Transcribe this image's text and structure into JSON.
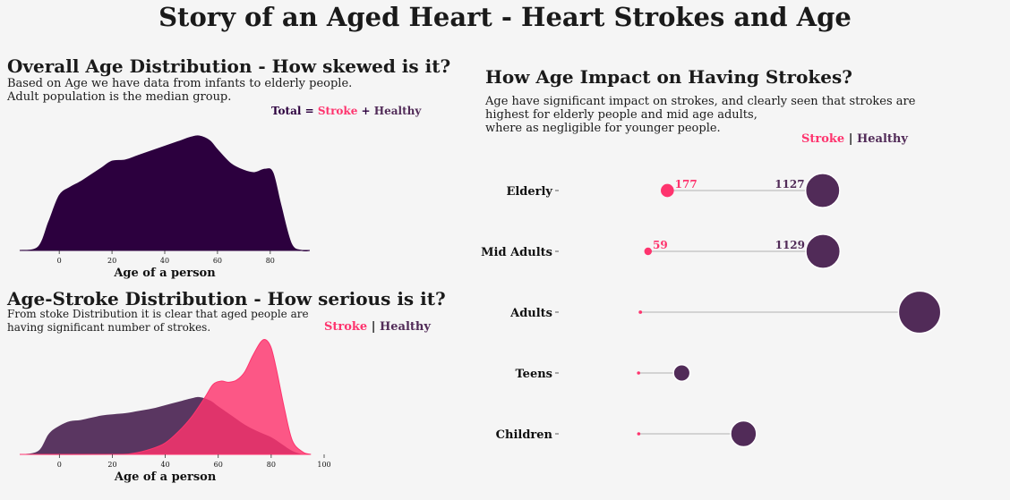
{
  "title": "Story of an Aged Heart - Heart Strokes and Age",
  "colors": {
    "stroke": "#fe346e",
    "healthy": "#512b58",
    "total": "#2c003e",
    "bg": "#f5f5f5",
    "lollipop_line": "#d3d3d3"
  },
  "panel1": {
    "title": "Overall Age Distribution - How skewed is it?",
    "desc_line1": "Based on Age we have data from infants to elderly people.",
    "desc_line2": "Adult population is the median group.",
    "legend": {
      "total": "Total",
      "eq": "=",
      "stroke": "Stroke",
      "plus": "+",
      "healthy": "Healthy"
    }
  },
  "panel2": {
    "title": "Age-Stroke Distribution - How serious is it?",
    "desc_line1": "From stoke Distribution it is clear that aged people are",
    "desc_line2": "having significant number of strokes.",
    "legend": {
      "stroke": "Stroke",
      "sep": "|",
      "healthy": "Healthy"
    }
  },
  "panel3": {
    "title": "How Age Impact on Having Strokes?",
    "desc_line1": "Age have significant impact on strokes, and clearly seen that strokes are",
    "desc_line2": "highest for elderly people and mid age adults,",
    "desc_line3": "where as negligible for younger people.",
    "legend": {
      "stroke": "Stroke",
      "sep": "|",
      "healthy": "Healthy"
    }
  },
  "chart_data": [
    {
      "type": "area",
      "title": "Overall Age Distribution - How skewed is it?",
      "xlabel": "Age of a person",
      "xlim": [
        -15,
        95
      ],
      "xticks": [
        0,
        20,
        40,
        60,
        80
      ],
      "series": [
        {
          "name": "Total",
          "x": [
            -15,
            -8,
            -4,
            0,
            4,
            8,
            12,
            16,
            20,
            25,
            30,
            35,
            40,
            45,
            50,
            53,
            57,
            60,
            65,
            70,
            74,
            78,
            81,
            84,
            88,
            92,
            95
          ],
          "y": [
            0.0,
            0.03,
            0.25,
            0.48,
            0.55,
            0.6,
            0.66,
            0.72,
            0.78,
            0.79,
            0.83,
            0.87,
            0.91,
            0.95,
            0.99,
            1.0,
            0.96,
            0.88,
            0.76,
            0.7,
            0.68,
            0.71,
            0.68,
            0.4,
            0.06,
            0.0,
            0.0
          ]
        }
      ]
    },
    {
      "type": "area",
      "title": "Age-Stroke Distribution - How serious is it?",
      "xlabel": "Age of a person",
      "xlim": [
        -15,
        100
      ],
      "xticks": [
        0,
        20,
        40,
        60,
        80,
        100
      ],
      "series": [
        {
          "name": "Healthy",
          "x": [
            -15,
            -8,
            -4,
            0,
            4,
            8,
            12,
            16,
            20,
            25,
            30,
            35,
            40,
            45,
            50,
            53,
            57,
            60,
            65,
            70,
            75,
            80,
            84,
            88,
            92,
            95
          ],
          "y": [
            0.0,
            0.03,
            0.18,
            0.25,
            0.29,
            0.3,
            0.32,
            0.34,
            0.35,
            0.36,
            0.38,
            0.4,
            0.43,
            0.46,
            0.49,
            0.5,
            0.47,
            0.42,
            0.34,
            0.26,
            0.2,
            0.15,
            0.09,
            0.03,
            0.0,
            0.0
          ]
        },
        {
          "name": "Stroke",
          "x": [
            -15,
            20,
            28,
            35,
            40,
            45,
            50,
            55,
            58,
            61,
            64,
            67,
            70,
            73,
            76,
            78,
            80,
            82,
            85,
            88,
            92,
            95
          ],
          "y": [
            0.0,
            0.0,
            0.01,
            0.05,
            0.1,
            0.2,
            0.33,
            0.5,
            0.61,
            0.64,
            0.63,
            0.65,
            0.72,
            0.86,
            0.98,
            1.0,
            0.93,
            0.74,
            0.4,
            0.12,
            0.02,
            0.0
          ]
        }
      ]
    },
    {
      "type": "scatter",
      "title": "How Age Impact on Having Strokes?",
      "categories": [
        "Elderly",
        "Mid Adults",
        "Adults",
        "Teens",
        "Children"
      ],
      "series": [
        {
          "name": "Stroke",
          "values": [
            177,
            59,
            12,
            1,
            2
          ]
        },
        {
          "name": "Healthy",
          "values": [
            1127,
            1129,
            1720,
            265,
            643
          ]
        }
      ],
      "labels": {
        "Elderly": {
          "stroke": "177",
          "healthy": "1127"
        },
        "Mid Adults": {
          "stroke": "59",
          "healthy": "1129"
        }
      }
    }
  ]
}
